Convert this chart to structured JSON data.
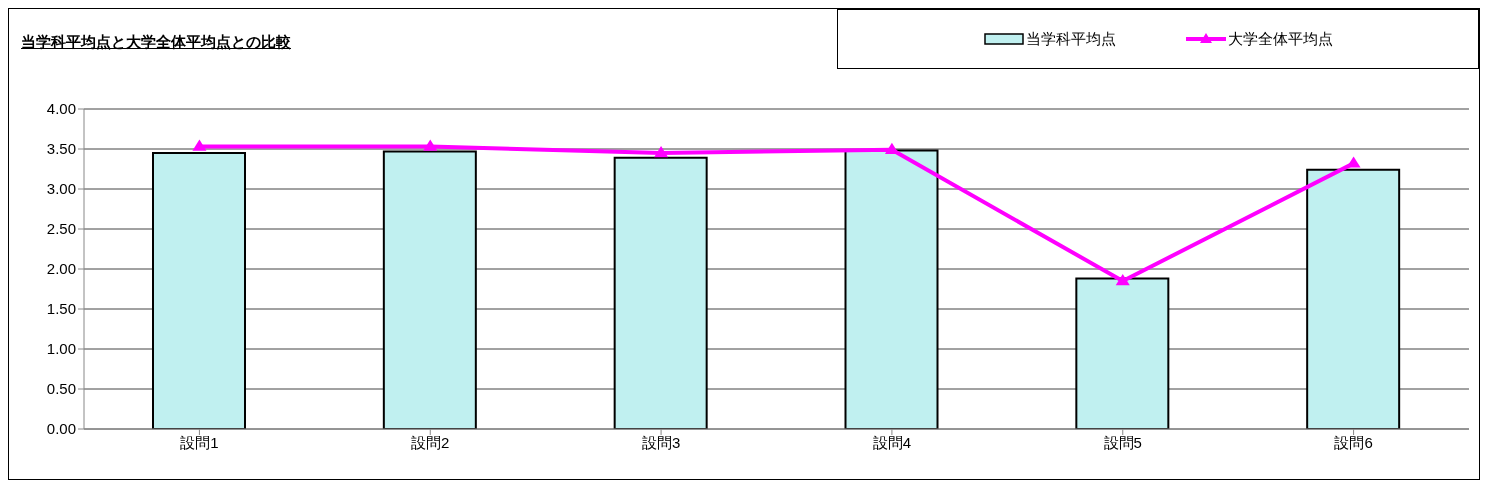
{
  "chart_data": {
    "type": "bar",
    "title": "当学科平均点と大学全体平均点との比較",
    "categories": [
      "設問1",
      "設問2",
      "設問3",
      "設問4",
      "設問5",
      "設問6"
    ],
    "series": [
      {
        "name": "当学科平均点",
        "color": "#c0f0f0",
        "values": [
          3.45,
          3.47,
          3.39,
          3.48,
          1.88,
          3.24
        ]
      },
      {
        "name": "大学全体平均点",
        "type": "line",
        "color": "#ff00ff",
        "values": [
          3.53,
          3.53,
          3.45,
          3.49,
          1.85,
          3.32
        ]
      }
    ],
    "ylim": [
      0,
      4
    ],
    "yticks": [
      {
        "value": 0,
        "label": "0.00"
      },
      {
        "value": 0.5,
        "label": "0.50"
      },
      {
        "value": 1,
        "label": "1.00"
      },
      {
        "value": 1.5,
        "label": "1.50"
      },
      {
        "value": 2,
        "label": "2.00"
      },
      {
        "value": 2.5,
        "label": "2.50"
      },
      {
        "value": 3,
        "label": "3.00"
      },
      {
        "value": 3.5,
        "label": "3.50"
      },
      {
        "value": 4,
        "label": "4.00"
      }
    ],
    "grid": "y",
    "legend": "top right",
    "marker": "triangle"
  }
}
